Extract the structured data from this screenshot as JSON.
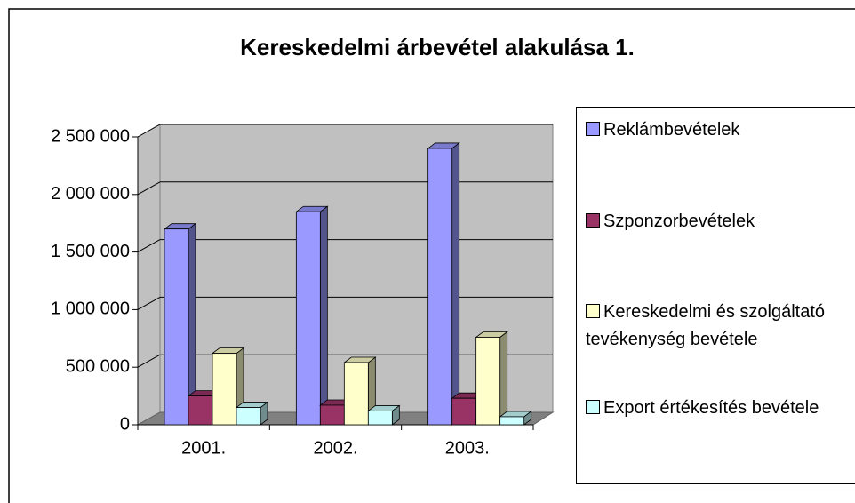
{
  "chart_data": {
    "type": "bar3d",
    "title": "Kereskedelmi árbevétel alakulása 1.",
    "categories": [
      "2001.",
      "2002.",
      "2003."
    ],
    "series": [
      {
        "name": "Reklámbevételek",
        "color": "#9999ff",
        "values": [
          1700000,
          1850000,
          2400000
        ]
      },
      {
        "name": "Szponzorbevételek",
        "color": "#993366",
        "values": [
          250000,
          170000,
          230000
        ]
      },
      {
        "name": "Kereskedelmi és szolgáltató tevékenység bevétele",
        "color": "#ffffcc",
        "values": [
          620000,
          540000,
          760000
        ]
      },
      {
        "name": "Export értékesítés bevétele",
        "color": "#ccffff",
        "values": [
          150000,
          120000,
          70000
        ]
      }
    ],
    "ylim": [
      0,
      2500000
    ],
    "yticks": [
      0,
      {
        "value": 500000,
        "label": "500 000"
      },
      {
        "value": 1000000,
        "label": "1 000 000"
      },
      {
        "value": 1500000,
        "label": "1 500 000"
      },
      {
        "value": 2000000,
        "label": "2 000 000"
      },
      {
        "value": 2500000,
        "label": "2 500 000"
      }
    ],
    "grid": true,
    "legend": "right"
  }
}
